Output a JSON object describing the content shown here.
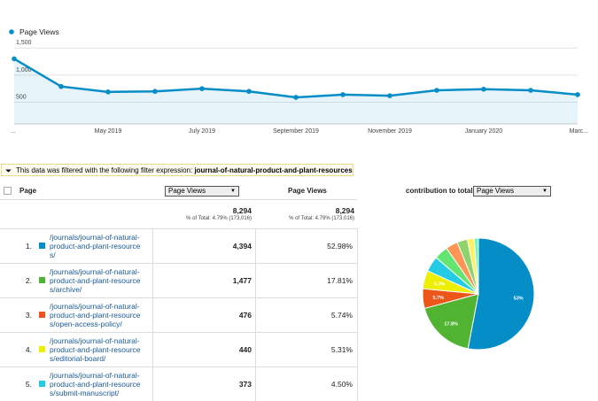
{
  "chart_data": [
    {
      "type": "line",
      "series": [
        {
          "name": "Page Views",
          "color": "#058dc7",
          "values": [
            1300,
            790,
            690,
            700,
            750,
            700,
            590,
            640,
            620,
            720,
            740,
            720,
            640
          ]
        }
      ],
      "categories": [
        "...",
        null,
        "May 2019",
        null,
        "July 2019",
        null,
        "September 2019",
        null,
        "November 2019",
        null,
        "January 2020",
        null,
        "Marc..."
      ],
      "ylim": [
        100,
        1650
      ],
      "yticks": [
        500,
        {
          "value": 1000,
          "label": "1,000"
        },
        {
          "value": 1500,
          "label": "1,500"
        }
      ],
      "grid": true
    },
    {
      "type": "pie",
      "values": [
        53,
        17.8,
        5.7,
        5.3,
        4.5,
        4.0,
        3.5,
        3.0,
        2.0,
        1.2
      ],
      "value_labels": [
        "53%",
        "17.8%",
        "5.7%",
        "5.3%",
        null,
        null,
        null,
        null,
        null,
        null
      ],
      "colors": [
        "#058dc7",
        "#50b432",
        "#ed561b",
        "#edef00",
        "#24cbe5",
        "#64e572",
        "#ff9655",
        "#8ed36e",
        "#fff263",
        "#6af9c4"
      ]
    }
  ],
  "filter": {
    "label": "This data was filtered with the following filter expression:",
    "expression": "journal-of-natural-product-and-plant-resources"
  },
  "table": {
    "headers": {
      "page": "Page",
      "primary_metric": "Page Views",
      "metric": "Page Views",
      "contribution_label": "contribution to total:",
      "contribution_metric": "Page Views"
    },
    "totals": [
      {
        "value": "8,294",
        "note": "% of Total: 4.79% (173,016)"
      },
      {
        "value": "8,294",
        "note": "% of Total: 4.79% (173,016)"
      }
    ],
    "rows": [
      {
        "index": "1.",
        "page": "/journals/journal-of-natural-product-and-plant-resources/",
        "views": "4,394",
        "percent": "52.98%"
      },
      {
        "index": "2.",
        "page": "/journals/journal-of-natural-product-and-plant-resources/archive/",
        "views": "1,477",
        "percent": "17.81%"
      },
      {
        "index": "3.",
        "page": "/journals/journal-of-natural-product-and-plant-resources/open-access-policy/",
        "views": "476",
        "percent": "5.74%"
      },
      {
        "index": "4.",
        "page": "/journals/journal-of-natural-product-and-plant-resources/editorial-board/",
        "views": "440",
        "percent": "5.31%"
      },
      {
        "index": "5.",
        "page": "/journals/journal-of-natural-product-and-plant-resources/submit-manuscript/",
        "views": "373",
        "percent": "4.50%"
      }
    ]
  }
}
